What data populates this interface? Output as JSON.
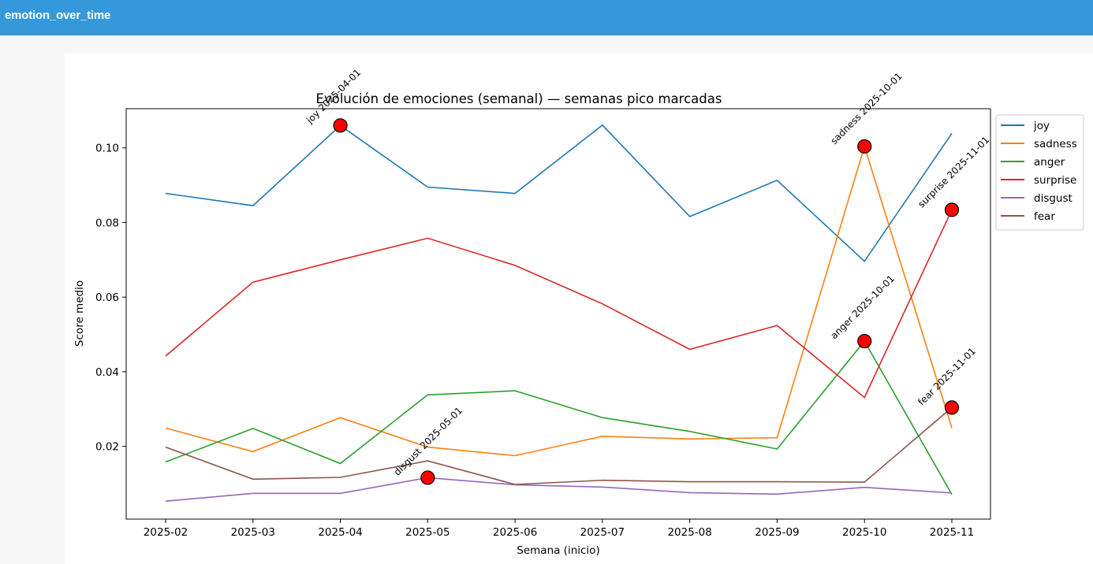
{
  "header": {
    "title": "emotion_over_time"
  },
  "chart_data": {
    "type": "line",
    "title": "Evolución de emociones (semanal) — semanas pico marcadas",
    "xlabel": "Semana (inicio)",
    "ylabel": "Score medio",
    "x": [
      "2025-02-01",
      "2025-03-01",
      "2025-04-01",
      "2025-05-01",
      "2025-06-01",
      "2025-07-01",
      "2025-08-01",
      "2025-09-01",
      "2025-10-01",
      "2025-11-01"
    ],
    "xticklabels": [
      "2025-02",
      "2025-03",
      "2025-04",
      "2025-05",
      "2025-06",
      "2025-07",
      "2025-08",
      "2025-09",
      "2025-10",
      "2025-11"
    ],
    "yticks": [
      0.02,
      0.04,
      0.06,
      0.08,
      0.1
    ],
    "yticklabels": [
      "0.02",
      "0.04",
      "0.06",
      "0.08",
      "0.10"
    ],
    "ylim": [
      0.0005,
      0.1105
    ],
    "grid": false,
    "legend_position": "outside-right-top",
    "series": [
      {
        "name": "joy",
        "color": "#1f77b4",
        "values": [
          0.0878,
          0.0845,
          0.106,
          0.0895,
          0.0878,
          0.1061,
          0.0816,
          0.0913,
          0.0696,
          0.1039
        ]
      },
      {
        "name": "sadness",
        "color": "#ff7f0e",
        "values": [
          0.0249,
          0.0186,
          0.0277,
          0.0198,
          0.0175,
          0.0227,
          0.022,
          0.0223,
          0.1004,
          0.0249
        ]
      },
      {
        "name": "anger",
        "color": "#2ca02c",
        "values": [
          0.0158,
          0.0248,
          0.0154,
          0.0338,
          0.0349,
          0.0277,
          0.024,
          0.0193,
          0.0482,
          0.0071
        ]
      },
      {
        "name": "surprise",
        "color": "#d62728",
        "values": [
          0.0442,
          0.064,
          0.07,
          0.0758,
          0.0685,
          0.0582,
          0.046,
          0.0524,
          0.0331,
          0.0834
        ]
      },
      {
        "name": "disgust",
        "color": "#9467bd",
        "values": [
          0.0053,
          0.0074,
          0.0074,
          0.0116,
          0.0097,
          0.0091,
          0.0076,
          0.0072,
          0.009,
          0.0075
        ]
      },
      {
        "name": "fear",
        "color": "#8c564b",
        "values": [
          0.0198,
          0.0112,
          0.0117,
          0.0161,
          0.0098,
          0.0109,
          0.0105,
          0.0105,
          0.0104,
          0.0304
        ]
      }
    ],
    "peaks": [
      {
        "label": "joy 2025-04-01",
        "x_index": 2,
        "value": 0.106
      },
      {
        "label": "disgust 2025-05-01",
        "x_index": 3,
        "value": 0.0116
      },
      {
        "label": "sadness 2025-10-01",
        "x_index": 8,
        "value": 0.1004
      },
      {
        "label": "anger 2025-10-01",
        "x_index": 8,
        "value": 0.0482
      },
      {
        "label": "surprise 2025-11-01",
        "x_index": 9,
        "value": 0.0834
      },
      {
        "label": "fear 2025-11-01",
        "x_index": 9,
        "value": 0.0304
      }
    ],
    "peak_marker_color": "#ff0000"
  }
}
